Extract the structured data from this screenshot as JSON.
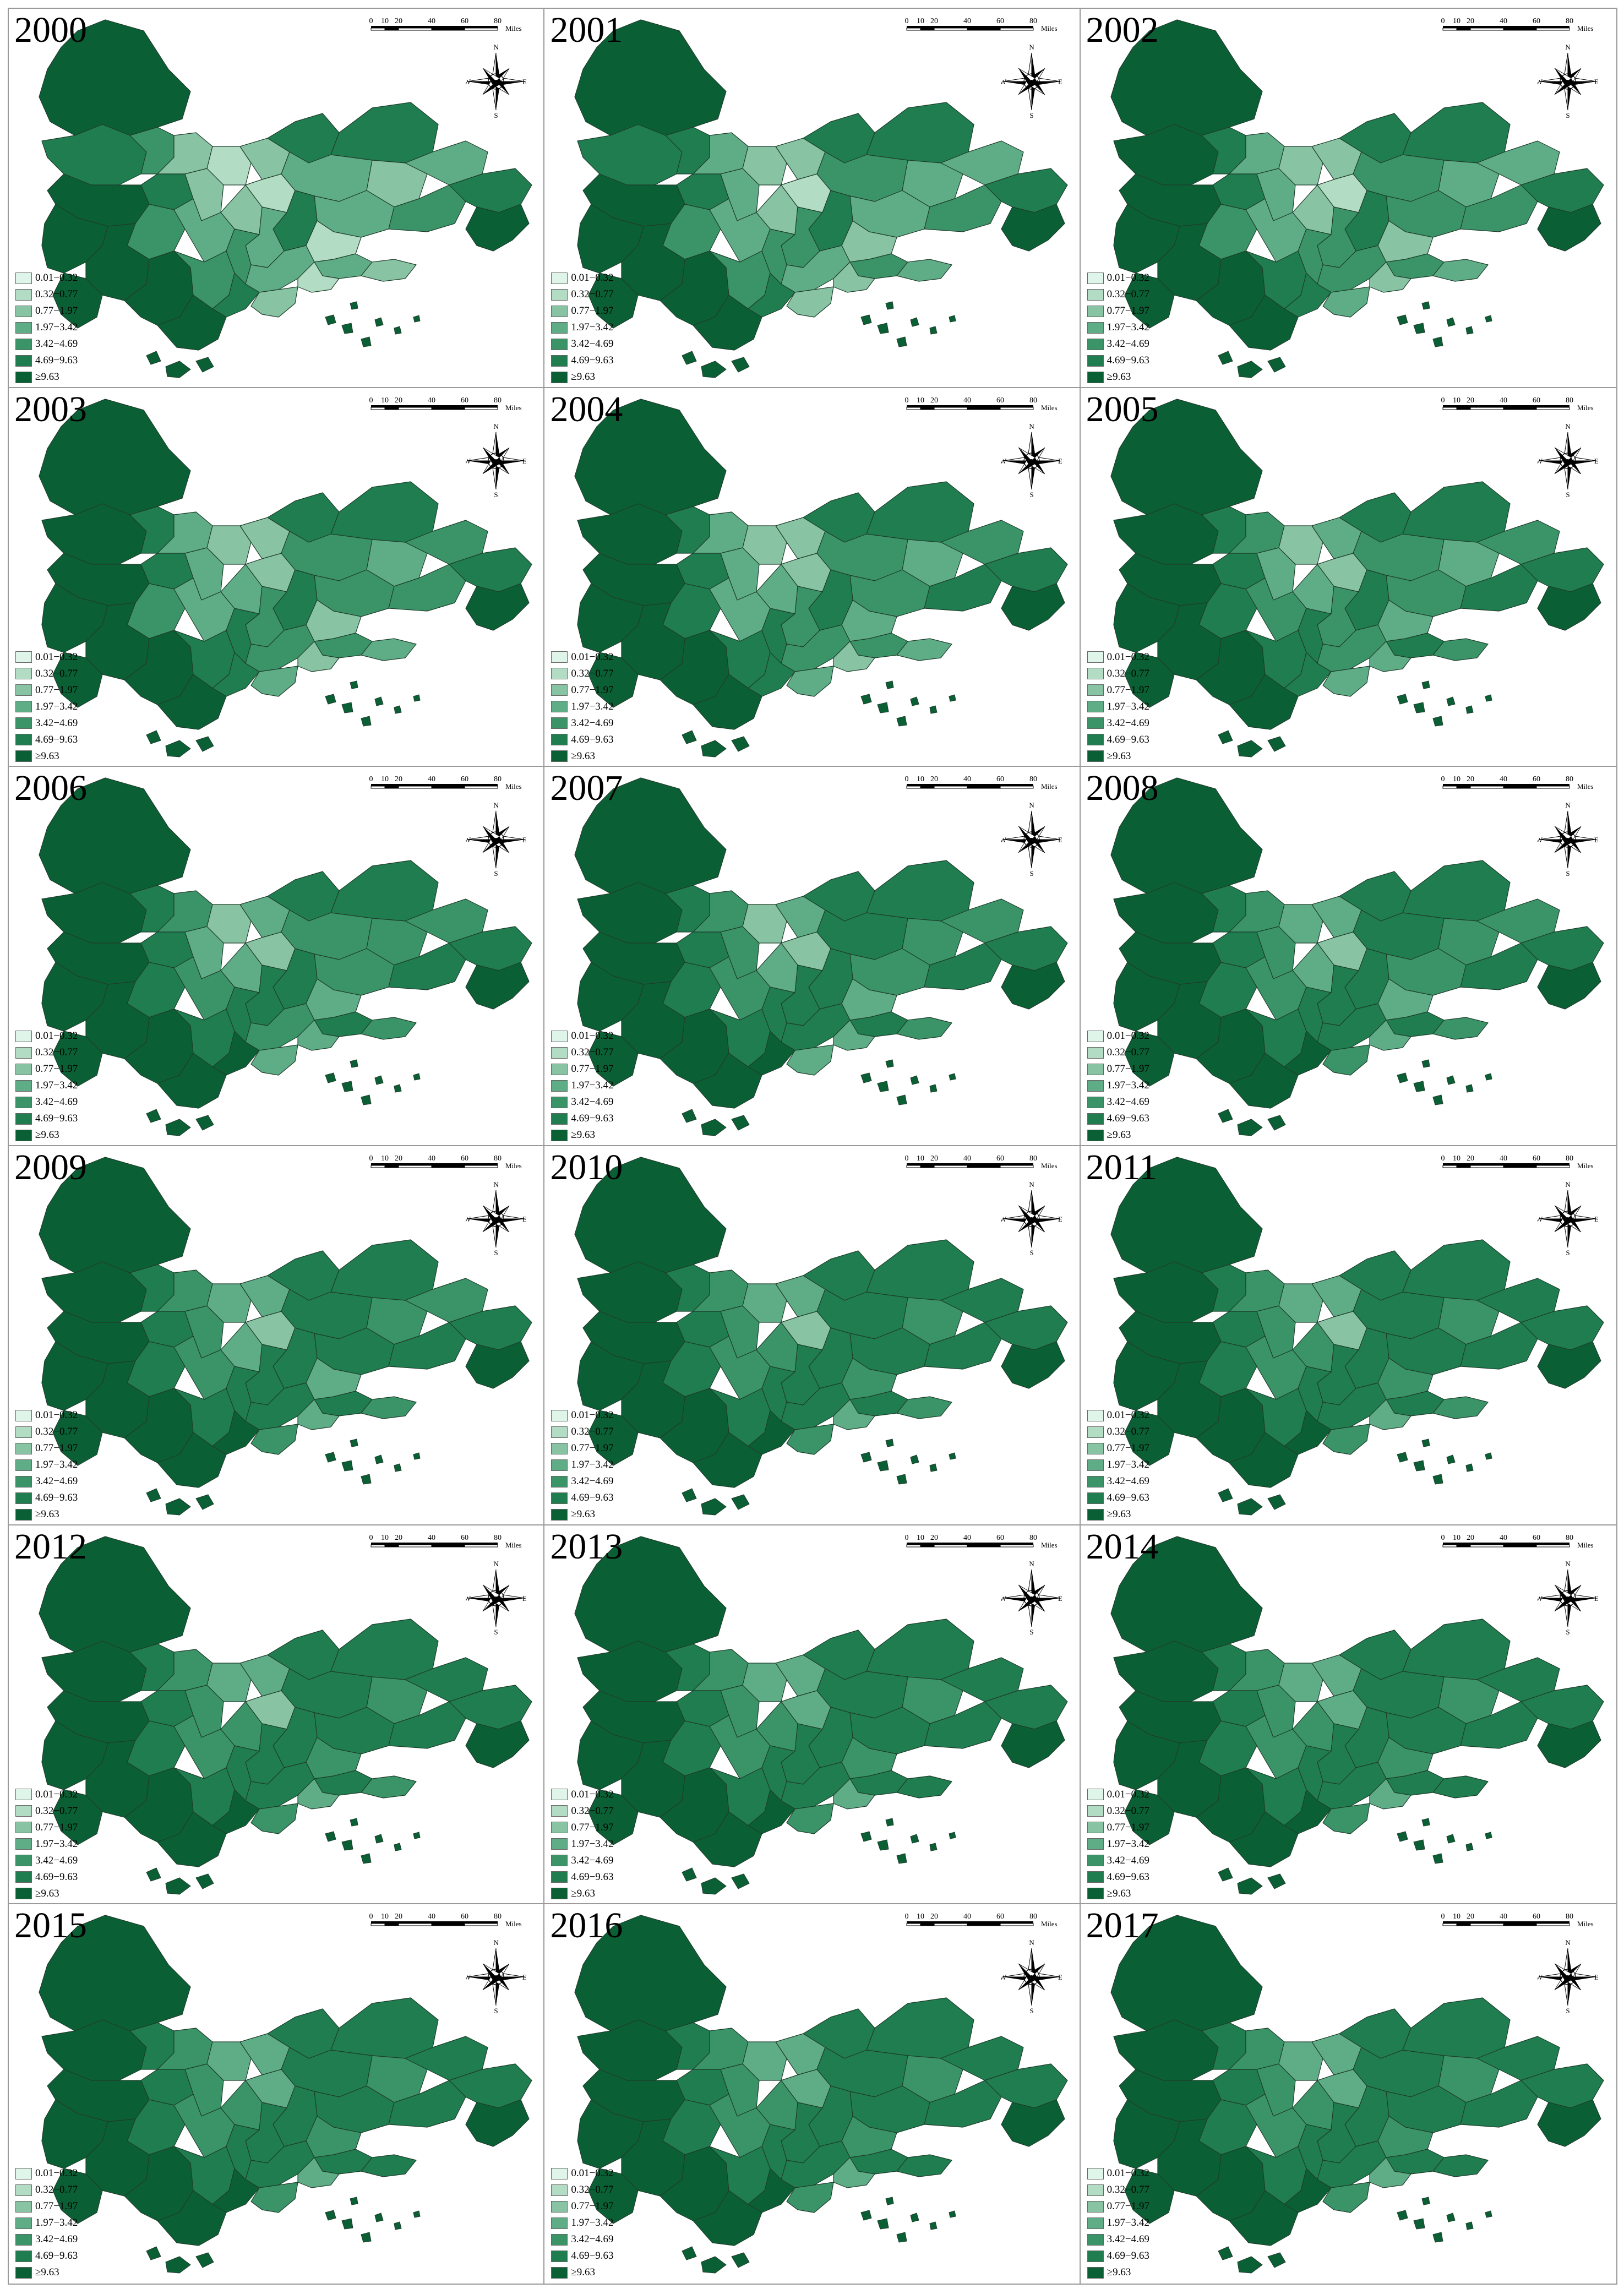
{
  "panels": [
    {
      "year": "2000",
      "shades": [
        6,
        5,
        4,
        2,
        5,
        6,
        4,
        2,
        1,
        3,
        2,
        2,
        1,
        5,
        5,
        3,
        2,
        3,
        3,
        4,
        5,
        6,
        5,
        3,
        1,
        6,
        6,
        6,
        6,
        4,
        4,
        3,
        5,
        6,
        3,
        2,
        1,
        2
      ]
    },
    {
      "year": "2001",
      "shades": [
        6,
        5,
        5,
        3,
        5,
        6,
        4,
        3,
        2,
        3,
        2,
        2,
        1,
        5,
        5,
        4,
        3,
        3,
        3,
        4,
        5,
        6,
        5,
        4,
        2,
        6,
        6,
        6,
        6,
        4,
        4,
        3,
        5,
        6,
        4,
        3,
        2,
        2
      ]
    },
    {
      "year": "2002",
      "shades": [
        6,
        6,
        5,
        3,
        5,
        6,
        4,
        3,
        2,
        3,
        2,
        2,
        1,
        5,
        5,
        4,
        3,
        3,
        4,
        4,
        5,
        6,
        5,
        4,
        2,
        6,
        6,
        6,
        6,
        5,
        4,
        4,
        5,
        6,
        4,
        3,
        2,
        3
      ]
    },
    {
      "year": "2003",
      "shades": [
        6,
        6,
        5,
        3,
        5,
        6,
        4,
        3,
        2,
        3,
        3,
        2,
        2,
        5,
        5,
        4,
        3,
        4,
        4,
        4,
        5,
        6,
        5,
        4,
        2,
        6,
        6,
        6,
        6,
        5,
        5,
        4,
        5,
        6,
        4,
        3,
        2,
        3
      ]
    },
    {
      "year": "2004",
      "shades": [
        6,
        6,
        5,
        3,
        5,
        6,
        5,
        3,
        2,
        3,
        3,
        2,
        2,
        5,
        5,
        4,
        3,
        4,
        4,
        5,
        5,
        6,
        5,
        4,
        3,
        6,
        6,
        6,
        6,
        5,
        5,
        4,
        5,
        6,
        4,
        3,
        2,
        3
      ]
    },
    {
      "year": "2005",
      "shades": [
        6,
        6,
        5,
        4,
        5,
        6,
        5,
        3,
        2,
        4,
        3,
        3,
        2,
        5,
        5,
        4,
        3,
        4,
        4,
        5,
        5,
        6,
        5,
        4,
        3,
        6,
        6,
        6,
        6,
        5,
        5,
        4,
        5,
        6,
        5,
        4,
        3,
        3
      ]
    },
    {
      "year": "2006",
      "shades": [
        6,
        6,
        5,
        4,
        5,
        6,
        5,
        3,
        2,
        4,
        3,
        3,
        2,
        5,
        5,
        4,
        4,
        4,
        4,
        5,
        5,
        6,
        5,
        5,
        3,
        6,
        6,
        6,
        6,
        5,
        5,
        4,
        6,
        6,
        5,
        4,
        3,
        3
      ]
    },
    {
      "year": "2007",
      "shades": [
        6,
        6,
        5,
        4,
        5,
        6,
        5,
        4,
        2,
        4,
        3,
        3,
        2,
        5,
        5,
        5,
        4,
        4,
        4,
        5,
        5,
        6,
        5,
        5,
        3,
        6,
        6,
        6,
        6,
        5,
        5,
        5,
        6,
        6,
        5,
        4,
        3,
        3
      ]
    },
    {
      "year": "2008",
      "shades": [
        6,
        6,
        5,
        4,
        5,
        6,
        5,
        4,
        3,
        4,
        3,
        3,
        2,
        5,
        5,
        5,
        4,
        4,
        4,
        5,
        5,
        6,
        5,
        5,
        3,
        6,
        6,
        6,
        6,
        5,
        5,
        5,
        6,
        6,
        5,
        4,
        3,
        4
      ]
    },
    {
      "year": "2009",
      "shades": [
        6,
        6,
        5,
        4,
        5,
        6,
        5,
        4,
        3,
        4,
        3,
        3,
        2,
        5,
        5,
        5,
        4,
        4,
        5,
        5,
        5,
        6,
        5,
        5,
        3,
        6,
        6,
        6,
        6,
        5,
        5,
        5,
        6,
        6,
        5,
        4,
        3,
        4
      ]
    },
    {
      "year": "2010",
      "shades": [
        6,
        6,
        5,
        4,
        5,
        6,
        5,
        4,
        3,
        4,
        4,
        3,
        2,
        5,
        5,
        5,
        4,
        5,
        5,
        5,
        5,
        6,
        5,
        5,
        4,
        6,
        6,
        6,
        6,
        5,
        5,
        5,
        6,
        6,
        5,
        4,
        3,
        4
      ]
    },
    {
      "year": "2011",
      "shades": [
        6,
        6,
        5,
        4,
        5,
        6,
        5,
        4,
        3,
        4,
        4,
        3,
        2,
        5,
        5,
        5,
        4,
        5,
        5,
        5,
        5,
        6,
        5,
        5,
        4,
        6,
        6,
        6,
        6,
        5,
        5,
        5,
        6,
        6,
        5,
        4,
        3,
        4
      ]
    },
    {
      "year": "2012",
      "shades": [
        6,
        6,
        5,
        4,
        5,
        6,
        5,
        4,
        3,
        4,
        4,
        3,
        2,
        5,
        5,
        5,
        4,
        5,
        5,
        5,
        5,
        6,
        5,
        5,
        4,
        6,
        6,
        6,
        6,
        5,
        5,
        5,
        6,
        6,
        5,
        4,
        3,
        4
      ]
    },
    {
      "year": "2013",
      "shades": [
        6,
        6,
        5,
        4,
        5,
        6,
        5,
        4,
        3,
        4,
        4,
        3,
        3,
        5,
        5,
        5,
        4,
        5,
        5,
        5,
        5,
        6,
        5,
        5,
        4,
        6,
        6,
        6,
        6,
        5,
        5,
        5,
        6,
        6,
        5,
        5,
        3,
        4
      ]
    },
    {
      "year": "2014",
      "shades": [
        6,
        6,
        5,
        4,
        5,
        6,
        5,
        4,
        3,
        4,
        4,
        3,
        3,
        5,
        5,
        5,
        4,
        5,
        5,
        5,
        5,
        6,
        5,
        5,
        4,
        6,
        6,
        6,
        6,
        5,
        5,
        5,
        6,
        6,
        5,
        5,
        3,
        4
      ]
    },
    {
      "year": "2015",
      "shades": [
        6,
        6,
        5,
        4,
        5,
        6,
        5,
        4,
        3,
        4,
        4,
        3,
        3,
        5,
        5,
        5,
        4,
        5,
        5,
        5,
        5,
        6,
        5,
        5,
        4,
        6,
        6,
        6,
        6,
        5,
        5,
        5,
        6,
        6,
        5,
        5,
        3,
        4
      ]
    },
    {
      "year": "2016",
      "shades": [
        6,
        6,
        5,
        4,
        5,
        6,
        5,
        4,
        3,
        4,
        4,
        3,
        3,
        5,
        5,
        5,
        4,
        5,
        5,
        5,
        5,
        6,
        5,
        5,
        4,
        6,
        6,
        6,
        6,
        5,
        5,
        5,
        6,
        6,
        5,
        5,
        3,
        4
      ]
    },
    {
      "year": "2017",
      "shades": [
        6,
        6,
        5,
        4,
        5,
        6,
        5,
        4,
        3,
        4,
        4,
        3,
        3,
        5,
        5,
        5,
        4,
        5,
        5,
        5,
        5,
        6,
        5,
        5,
        4,
        6,
        6,
        6,
        6,
        5,
        5,
        5,
        6,
        6,
        5,
        5,
        3,
        4
      ]
    }
  ],
  "legend": [
    {
      "label": "0.01−0.32",
      "color": "#dff5ea"
    },
    {
      "label": "0.32−0.77",
      "color": "#b3dcc4"
    },
    {
      "label": "0.77−1.97",
      "color": "#88c4a3"
    },
    {
      "label": "1.97−3.42",
      "color": "#5fad86"
    },
    {
      "label": "3.42−4.69",
      "color": "#3a9468"
    },
    {
      "label": "4.69−9.63",
      "color": "#1f7d4f"
    },
    {
      "label": "≥9.63",
      "color": "#0b5f35"
    }
  ],
  "scale_bar": {
    "ticks": [
      "0",
      "10",
      "20",
      "40",
      "60",
      "80"
    ],
    "unit": "Miles"
  },
  "compass": {
    "n": "N",
    "s": "S",
    "e": "E",
    "w": "W"
  }
}
